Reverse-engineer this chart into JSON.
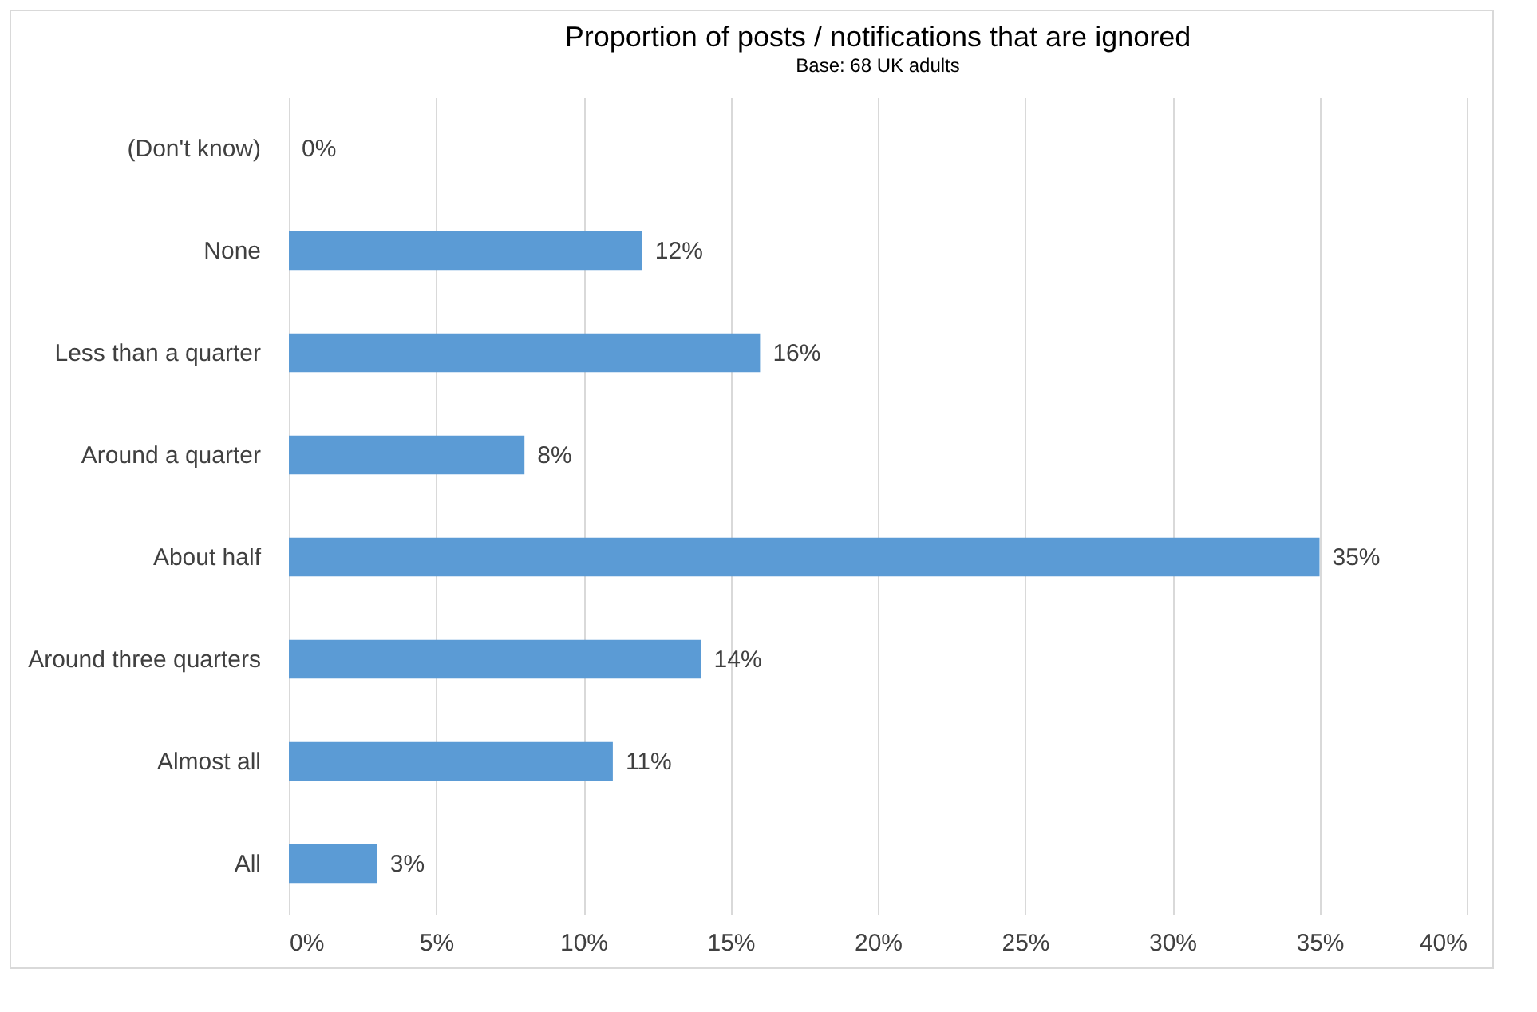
{
  "chart_data": {
    "type": "bar",
    "orientation": "horizontal",
    "title": "Proportion of posts / notifications that are ignored",
    "subtitle": "Base: 68 UK adults",
    "categories": [
      "(Don't know)",
      "None",
      "Less than a quarter",
      "Around a quarter",
      "About half",
      "Around three quarters",
      "Almost all",
      "All"
    ],
    "values": [
      0,
      12,
      16,
      8,
      35,
      14,
      11,
      3
    ],
    "value_labels": [
      "0%",
      "12%",
      "16%",
      "8%",
      "35%",
      "14%",
      "11%",
      "3%"
    ],
    "color": "#5b9bd5",
    "xlim": [
      0,
      40
    ],
    "xticks": [
      {
        "value": 0,
        "label": "0%"
      },
      {
        "value": 5,
        "label": "5%"
      },
      {
        "value": 10,
        "label": "10%"
      },
      {
        "value": 15,
        "label": "15%"
      },
      {
        "value": 20,
        "label": "20%"
      },
      {
        "value": 25,
        "label": "25%"
      },
      {
        "value": 30,
        "label": "30%"
      },
      {
        "value": 35,
        "label": "35%"
      },
      {
        "value": 40,
        "label": "40%"
      }
    ],
    "grid": "x"
  }
}
